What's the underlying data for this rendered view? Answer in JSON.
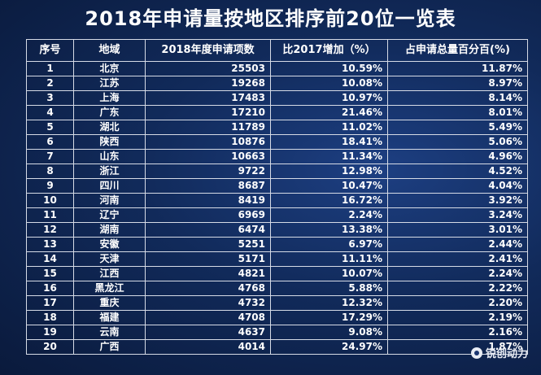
{
  "title": "2018年申请量按地区排序前20位一览表",
  "headers": {
    "rank": "序号",
    "region": "地域",
    "applications": "2018年度申请项数",
    "growth": "比2017增加（%）",
    "share": "占申请总量百分百(%)"
  },
  "rows": [
    {
      "rank": "1",
      "region": "北京",
      "applications": "25503",
      "growth": "10.59%",
      "share": "11.87%"
    },
    {
      "rank": "2",
      "region": "江苏",
      "applications": "19268",
      "growth": "10.08%",
      "share": "8.97%"
    },
    {
      "rank": "3",
      "region": "上海",
      "applications": "17483",
      "growth": "10.97%",
      "share": "8.14%"
    },
    {
      "rank": "4",
      "region": "广东",
      "applications": "17210",
      "growth": "21.46%",
      "share": "8.01%"
    },
    {
      "rank": "5",
      "region": "湖北",
      "applications": "11789",
      "growth": "11.02%",
      "share": "5.49%"
    },
    {
      "rank": "6",
      "region": "陕西",
      "applications": "10876",
      "growth": "18.41%",
      "share": "5.06%"
    },
    {
      "rank": "7",
      "region": "山东",
      "applications": "10663",
      "growth": "11.34%",
      "share": "4.96%"
    },
    {
      "rank": "8",
      "region": "浙江",
      "applications": "9722",
      "growth": "12.98%",
      "share": "4.52%"
    },
    {
      "rank": "9",
      "region": "四川",
      "applications": "8687",
      "growth": "10.47%",
      "share": "4.04%"
    },
    {
      "rank": "10",
      "region": "河南",
      "applications": "8419",
      "growth": "16.72%",
      "share": "3.92%"
    },
    {
      "rank": "11",
      "region": "辽宁",
      "applications": "6969",
      "growth": "2.24%",
      "share": "3.24%"
    },
    {
      "rank": "12",
      "region": "湖南",
      "applications": "6474",
      "growth": "13.38%",
      "share": "3.01%"
    },
    {
      "rank": "13",
      "region": "安徽",
      "applications": "5251",
      "growth": "6.97%",
      "share": "2.44%"
    },
    {
      "rank": "14",
      "region": "天津",
      "applications": "5171",
      "growth": "11.11%",
      "share": "2.41%"
    },
    {
      "rank": "15",
      "region": "江西",
      "applications": "4821",
      "growth": "10.07%",
      "share": "2.24%"
    },
    {
      "rank": "16",
      "region": "黑龙江",
      "applications": "4768",
      "growth": "5.88%",
      "share": "2.22%"
    },
    {
      "rank": "17",
      "region": "重庆",
      "applications": "4732",
      "growth": "12.32%",
      "share": "2.20%"
    },
    {
      "rank": "18",
      "region": "福建",
      "applications": "4708",
      "growth": "17.29%",
      "share": "2.19%"
    },
    {
      "rank": "19",
      "region": "云南",
      "applications": "4637",
      "growth": "9.08%",
      "share": "2.16%"
    },
    {
      "rank": "20",
      "region": "广西",
      "applications": "4014",
      "growth": "24.97%",
      "share": "1.87%"
    }
  ],
  "watermark": {
    "text": "锐创动力",
    "icon": "chat-bubble-icon"
  }
}
